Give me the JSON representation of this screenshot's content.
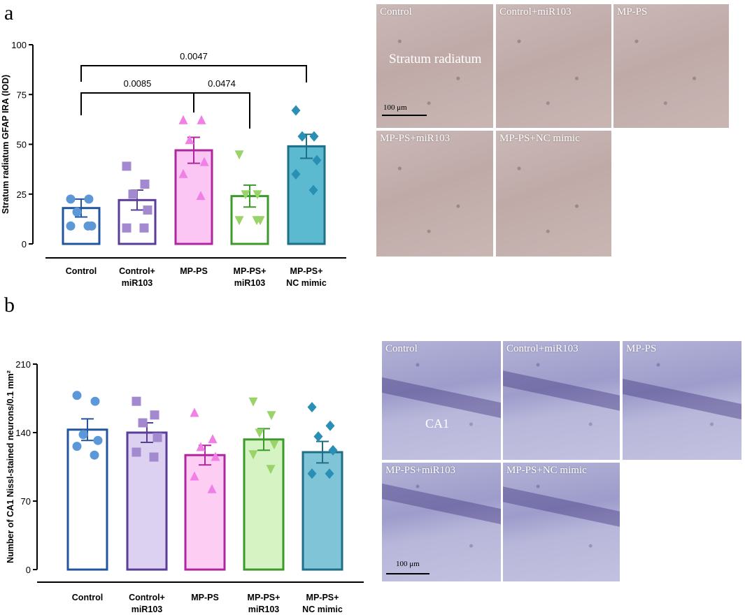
{
  "panel_a": {
    "letter": "a",
    "chart_data": {
      "type": "bar",
      "ylabel": "Stratum radiatum GFAP IRA (IOD)",
      "ylim": [
        0,
        100
      ],
      "yticks": [
        "0",
        "25",
        "50",
        "75",
        "100"
      ],
      "categories": [
        {
          "line1": "Control",
          "line2": ""
        },
        {
          "line1": "Control+",
          "line2": "miR103"
        },
        {
          "line1": "MP-PS",
          "line2": ""
        },
        {
          "line1": "MP-PS+",
          "line2": "miR103"
        },
        {
          "line1": "MP-PS+",
          "line2": "NC mimic"
        }
      ],
      "means": [
        18,
        22,
        47,
        24,
        49
      ],
      "sem": [
        4.5,
        5,
        6.5,
        5.5,
        6
      ],
      "points": [
        [
          22.5,
          22.5,
          16,
          9,
          9,
          9
        ],
        [
          39,
          30,
          25,
          17,
          8,
          8
        ],
        [
          62,
          62,
          52,
          41,
          35,
          24
        ],
        [
          45,
          25,
          25,
          12,
          12,
          12
        ],
        [
          67,
          54,
          54,
          42,
          35,
          27
        ]
      ],
      "comparisons": [
        {
          "from": 0,
          "to": 2,
          "label": "0.0085"
        },
        {
          "from": 2,
          "to": 3,
          "label": "0.0474"
        },
        {
          "from": 0,
          "to": 4,
          "label": "0.0047"
        }
      ],
      "colors": {
        "edge": [
          "#2255a0",
          "#5a3d98",
          "#b0279d",
          "#3b9a2a",
          "#1e6f87"
        ],
        "fill": [
          "#ffffff",
          "#ffffff",
          "#fbc6f3",
          "#ffffff",
          "#5bbad0"
        ],
        "marker": [
          "#5c97d8",
          "#a38ad0",
          "#f07fe6",
          "#9bd36b",
          "#2a8fb4"
        ]
      },
      "markers": [
        "circle",
        "square",
        "triangle-up",
        "triangle-down",
        "diamond"
      ]
    },
    "images": [
      {
        "label": "Control",
        "inner": "Stratum radiatum",
        "scale": "100 μm"
      },
      {
        "label": "Control+miR103"
      },
      {
        "label": "MP-PS"
      },
      {
        "label": "MP-PS+miR103"
      },
      {
        "label": "MP-PS+NC mimic"
      }
    ]
  },
  "panel_b": {
    "letter": "b",
    "chart_data": {
      "type": "bar",
      "ylabel": "Number of CA1 Nissl-stained neurons/0.1 mm²",
      "ylim": [
        0,
        210
      ],
      "yticks": [
        "0",
        "70",
        "140",
        "210"
      ],
      "categories": [
        {
          "line1": "Control",
          "line2": ""
        },
        {
          "line1": "Control+",
          "line2": "miR103"
        },
        {
          "line1": "MP-PS",
          "line2": ""
        },
        {
          "line1": "MP-PS+",
          "line2": "miR103"
        },
        {
          "line1": "MP-PS+",
          "line2": "NC mimic"
        }
      ],
      "means": [
        143,
        140,
        117,
        133,
        120
      ],
      "sem": [
        11,
        10,
        10,
        11,
        11
      ],
      "points": [
        [
          178,
          172,
          138,
          132,
          126,
          117
        ],
        [
          172,
          158,
          150,
          135,
          120,
          115
        ],
        [
          160,
          133,
          125,
          115,
          95,
          82
        ],
        [
          172,
          158,
          140,
          128,
          118,
          103
        ],
        [
          166,
          147,
          136,
          122,
          98,
          98
        ]
      ],
      "colors": {
        "edge": [
          "#2255a0",
          "#5a3d98",
          "#b0279d",
          "#3b9a2a",
          "#1e6f87"
        ],
        "fill": [
          "#ffffff",
          "#dcd1f0",
          "#fdcdf4",
          "#d6f3c4",
          "#80c4d8"
        ],
        "marker": [
          "#5c97d8",
          "#a38ad0",
          "#f07fe6",
          "#9bd36b",
          "#2a8fb4"
        ]
      },
      "markers": [
        "circle",
        "square",
        "triangle-up",
        "triangle-down",
        "diamond"
      ]
    },
    "images": [
      {
        "label": "Control",
        "inner": "CA1"
      },
      {
        "label": "Control+miR103"
      },
      {
        "label": "MP-PS"
      },
      {
        "label": "MP-PS+miR103",
        "scale": "100 μm"
      },
      {
        "label": "MP-PS+NC mimic"
      }
    ]
  }
}
